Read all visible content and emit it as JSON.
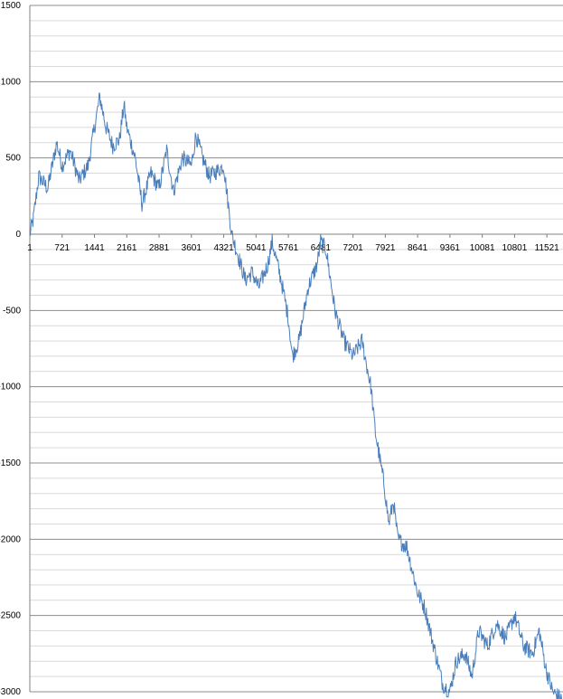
{
  "chart_data": {
    "type": "line",
    "title": "",
    "xlabel": "",
    "ylabel": "",
    "ylim": [
      -3000,
      1500
    ],
    "y_major_ticks": [
      1500,
      1000,
      500,
      0,
      -500,
      -1000,
      -1500,
      -2000,
      -2500,
      -3000
    ],
    "y_minor_step": 100,
    "xlim": [
      1,
      11880
    ],
    "x_tick_labels": [
      "1",
      "721",
      "1441",
      "2161",
      "2881",
      "3601",
      "4321",
      "5041",
      "5761",
      "6481",
      "7201",
      "7921",
      "8641",
      "9361",
      "10081",
      "10801",
      "11521"
    ],
    "grid": true,
    "legend": "none",
    "series": [
      {
        "color": "#4A7EBB",
        "x": [
          1,
          80,
          200,
          400,
          600,
          720,
          900,
          1100,
          1300,
          1440,
          1560,
          1700,
          1850,
          2000,
          2100,
          2160,
          2350,
          2500,
          2700,
          2880,
          3050,
          3200,
          3400,
          3600,
          3700,
          3850,
          4000,
          4200,
          4321,
          4400,
          4500,
          4650,
          4800,
          4950,
          5100,
          5300,
          5400,
          5600,
          5761,
          5850,
          6000,
          6200,
          6400,
          6481,
          6600,
          6800,
          7000,
          7200,
          7400,
          7500,
          7600,
          7700,
          7900,
          8000,
          8100,
          8200,
          8400,
          8641,
          8800,
          9000,
          9200,
          9361,
          9500,
          9700,
          9850,
          10000,
          10200,
          10400,
          10600,
          10801,
          11000,
          11200,
          11350,
          11500,
          11650,
          11850
        ],
        "y": [
          0,
          100,
          380,
          300,
          600,
          450,
          550,
          350,
          450,
          700,
          900,
          700,
          580,
          620,
          850,
          700,
          500,
          200,
          400,
          300,
          550,
          280,
          500,
          450,
          650,
          500,
          380,
          420,
          450,
          250,
          0,
          -150,
          -300,
          -250,
          -350,
          -200,
          -50,
          -300,
          -550,
          -800,
          -700,
          -350,
          -200,
          -50,
          -100,
          -500,
          -700,
          -800,
          -700,
          -850,
          -1000,
          -1300,
          -1650,
          -1900,
          -1750,
          -2000,
          -2050,
          -2350,
          -2450,
          -2700,
          -2950,
          -3000,
          -2800,
          -2750,
          -2900,
          -2600,
          -2700,
          -2550,
          -2650,
          -2500,
          -2700,
          -2750,
          -2600,
          -2850,
          -3000,
          -3050
        ]
      }
    ]
  }
}
